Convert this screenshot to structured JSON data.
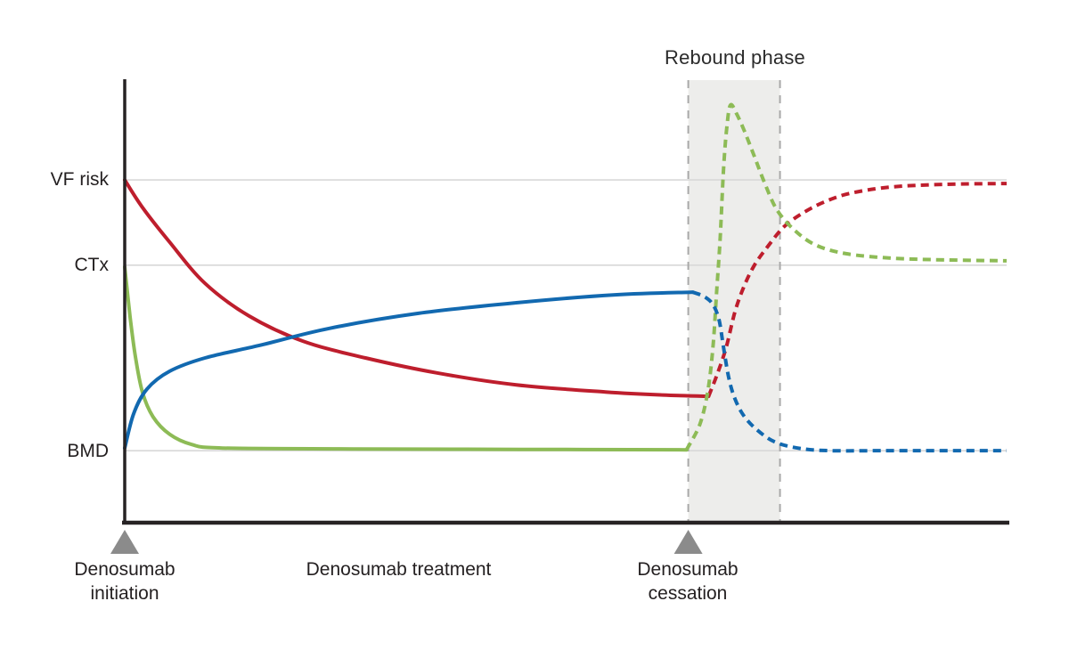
{
  "title": "Rebound phase",
  "y_axis_labels": {
    "vf_risk": "VF risk",
    "ctx": "CTx",
    "bmd": "BMD"
  },
  "x_axis_labels": {
    "initiation_line1": "Denosumab",
    "initiation_line2": "initiation",
    "treatment": "Denosumab treatment",
    "cessation_line1": "Denosumab",
    "cessation_line2": "cessation"
  },
  "colors": {
    "vf_risk": "#be1e2d",
    "ctx": "#8dbb56",
    "bmd": "#1269b0",
    "rebound_fill": "#ededeb",
    "rebound_border": "#a9a9a9",
    "gridline": "#d8d8d8",
    "axis": "#272324",
    "marker": "#8b8b8b",
    "text": "#2b2b2b"
  },
  "chart_data": {
    "type": "line",
    "title": "Rebound phase",
    "x_axis": {
      "range": [
        0,
        100
      ],
      "unit": "time (schematic, unlabeled)",
      "event_labels": [
        "Denosumab initiation",
        "Denosumab treatment",
        "Denosumab cessation"
      ]
    },
    "y_axis": {
      "range": [
        0,
        100
      ],
      "unit": "relative level (schematic, unlabeled)",
      "tick_labels": [
        "VF risk",
        "CTx",
        "BMD"
      ]
    },
    "grid": true,
    "legend": "none (curves identified by y-axis labels at their baseline levels)",
    "reference_levels": {
      "vf_risk": 77.4,
      "ctx": 58.1,
      "bmd": 16.1
    },
    "events": {
      "initiation_x": 0,
      "cessation_x": 63.9
    },
    "rebound_region": {
      "x_start": 63.9,
      "x_end": 74.3,
      "label": "Rebound phase"
    },
    "series": [
      {
        "id": "vf_risk",
        "label": "VF risk",
        "color_key": "vf_risk",
        "segments": [
          {
            "style": "solid",
            "points": [
              [
                0,
                77.4
              ],
              [
                2,
                71.2
              ],
              [
                5.1,
                63.3
              ],
              [
                9.1,
                54
              ],
              [
                14.1,
                46.6
              ],
              [
                20.2,
                40.9
              ],
              [
                27.3,
                37.1
              ],
              [
                35.4,
                33.7
              ],
              [
                44.4,
                31
              ],
              [
                54.5,
                29.4
              ],
              [
                61,
                28.7
              ],
              [
                66.2,
                28.4
              ]
            ]
          },
          {
            "style": "dashed",
            "points": [
              [
                66.2,
                28.4
              ],
              [
                67.2,
                33.5
              ],
              [
                68.2,
                39.5
              ],
              [
                69.2,
                47.6
              ],
              [
                70.2,
                53.2
              ],
              [
                71.4,
                58.1
              ],
              [
                72.9,
                62.3
              ],
              [
                74.7,
                66.7
              ],
              [
                76.8,
                69.8
              ],
              [
                79.3,
                72.4
              ],
              [
                82.3,
                74.4
              ],
              [
                86.9,
                75.8
              ],
              [
                92.9,
                76.4
              ],
              [
                100,
                76.6
              ]
            ]
          }
        ]
      },
      {
        "id": "ctx",
        "label": "CTx",
        "color_key": "ctx",
        "segments": [
          {
            "style": "solid",
            "points": [
              [
                0,
                57.7
              ],
              [
                0.6,
                46.6
              ],
              [
                1.2,
                37.5
              ],
              [
                2,
                29.4
              ],
              [
                3.2,
                23.8
              ],
              [
                5.1,
                19.8
              ],
              [
                7.6,
                17.5
              ],
              [
                11.1,
                16.7
              ],
              [
                26.3,
                16.5
              ],
              [
                45,
                16.4
              ],
              [
                63.7,
                16.3
              ]
            ]
          },
          {
            "style": "dashed",
            "points": [
              [
                63.7,
                16.3
              ],
              [
                65.2,
                22
              ],
              [
                66.1,
                29.4
              ],
              [
                66.7,
                39.5
              ],
              [
                67.1,
                51.6
              ],
              [
                67.5,
                63.7
              ],
              [
                67.9,
                79.8
              ],
              [
                68.3,
                89.9
              ],
              [
                68.7,
                94.4
              ],
              [
                69.4,
                92.3
              ],
              [
                70.3,
                88.3
              ],
              [
                71.4,
                82.7
              ],
              [
                72.5,
                77
              ],
              [
                73.9,
                70.8
              ],
              [
                75.8,
                66.3
              ],
              [
                78.3,
                62.7
              ],
              [
                81.8,
                60.7
              ],
              [
                86.9,
                59.7
              ],
              [
                92.9,
                59.3
              ],
              [
                100,
                59.1
              ]
            ]
          }
        ]
      },
      {
        "id": "bmd",
        "label": "BMD",
        "color_key": "bmd",
        "segments": [
          {
            "style": "solid",
            "points": [
              [
                0,
                16.7
              ],
              [
                1,
                24.4
              ],
              [
                2.5,
                30
              ],
              [
                5.1,
                34.1
              ],
              [
                9.1,
                37.1
              ],
              [
                15.2,
                39.9
              ],
              [
                23.2,
                43.8
              ],
              [
                33.3,
                47.2
              ],
              [
                44.4,
                49.6
              ],
              [
                55.6,
                51.4
              ],
              [
                64.4,
                52
              ]
            ]
          },
          {
            "style": "dashed",
            "points": [
              [
                64.4,
                52
              ],
              [
                65.7,
                51
              ],
              [
                66.7,
                49.2
              ],
              [
                67.4,
                45.6
              ],
              [
                67.9,
                39.5
              ],
              [
                68.5,
                32.5
              ],
              [
                69.2,
                27.8
              ],
              [
                70.2,
                24
              ],
              [
                71.7,
                20.8
              ],
              [
                73.7,
                18.1
              ],
              [
                76.3,
                16.7
              ],
              [
                79.8,
                16.1
              ],
              [
                86.9,
                16.1
              ],
              [
                100,
                16.1
              ]
            ]
          }
        ]
      }
    ]
  }
}
